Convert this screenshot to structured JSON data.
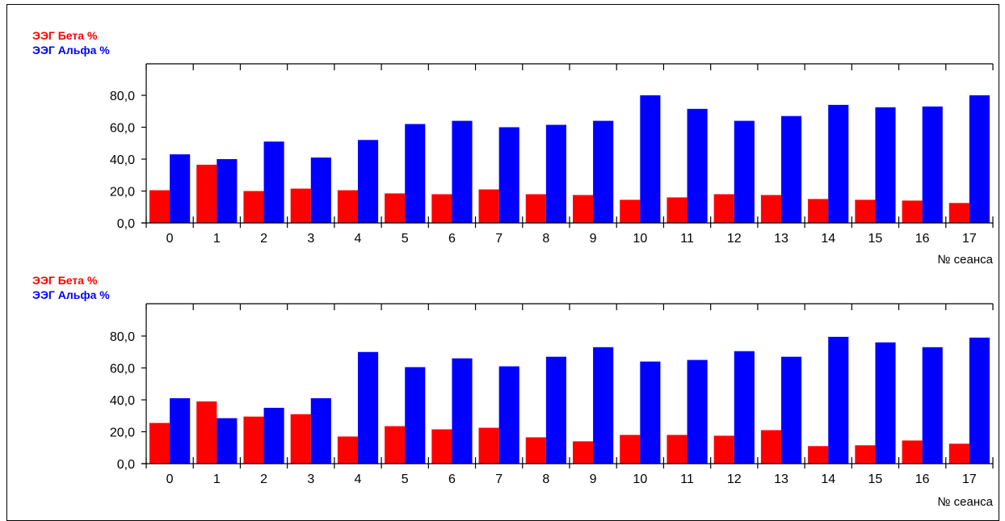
{
  "colors": {
    "beta": "#ff0000",
    "alpha": "#0000ff"
  },
  "chart_data": [
    {
      "type": "bar",
      "legend_placement": "top-left",
      "xlabel": "№ сеанса",
      "ylim": [
        0,
        80
      ],
      "yticks": [
        "0,0",
        "20,0",
        "40,0",
        "60,0",
        "80,0"
      ],
      "categories": [
        "0",
        "1",
        "2",
        "3",
        "4",
        "5",
        "6",
        "7",
        "8",
        "9",
        "10",
        "11",
        "12",
        "13",
        "14",
        "15",
        "16",
        "17"
      ],
      "series": [
        {
          "name": "ЭЭГ Бета %",
          "color": "#ff0000",
          "values": [
            20.5,
            36.5,
            20,
            21.5,
            20.5,
            18.5,
            18,
            21,
            18,
            17.5,
            14.5,
            16,
            18,
            17.5,
            15,
            14.5,
            14,
            12.5
          ]
        },
        {
          "name": "ЭЭГ Альфа %",
          "color": "#0000ff",
          "values": [
            43,
            40,
            51,
            41,
            52,
            62,
            64,
            60,
            61.5,
            64,
            80,
            71.5,
            64,
            67,
            74,
            72.5,
            73,
            80
          ]
        }
      ]
    },
    {
      "type": "bar",
      "legend_placement": "top-left",
      "xlabel": "№ сеанса",
      "ylim": [
        0,
        80
      ],
      "yticks": [
        "0,0",
        "20,0",
        "40,0",
        "60,0",
        "80,0"
      ],
      "categories": [
        "0",
        "1",
        "2",
        "3",
        "4",
        "5",
        "6",
        "7",
        "8",
        "9",
        "10",
        "11",
        "12",
        "13",
        "14",
        "15",
        "16",
        "17"
      ],
      "series": [
        {
          "name": "ЭЭГ Бета %",
          "color": "#ff0000",
          "values": [
            25.5,
            39,
            29.5,
            31,
            17,
            23.5,
            21.5,
            22.5,
            16.5,
            14,
            18,
            18,
            17.5,
            21,
            11,
            11.5,
            14.5,
            12.5
          ]
        },
        {
          "name": "ЭЭГ Альфа %",
          "color": "#0000ff",
          "values": [
            41,
            28.5,
            35,
            41,
            70,
            60.5,
            66,
            61,
            67,
            73,
            64,
            65,
            70.5,
            67,
            79.5,
            76,
            73,
            79
          ]
        }
      ]
    }
  ]
}
